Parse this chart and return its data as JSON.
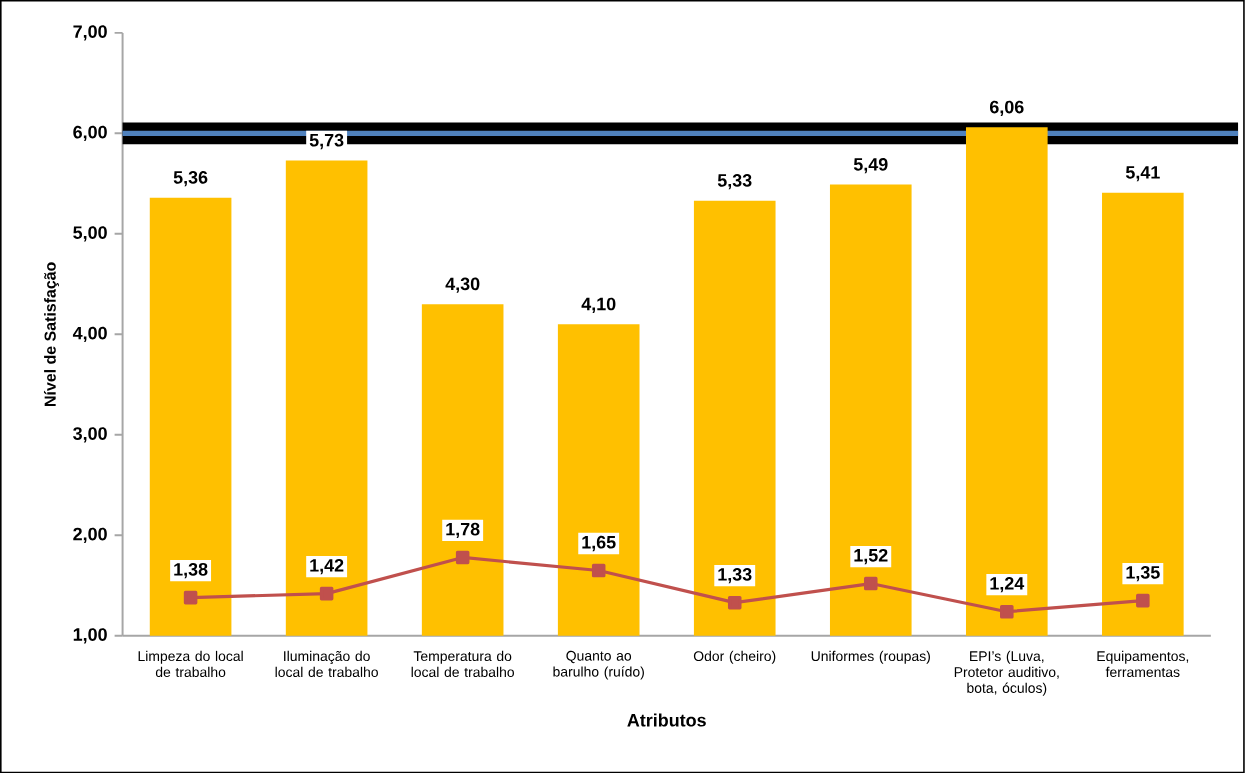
{
  "chart_data": {
    "type": "bar",
    "xlabel": "Atributos",
    "ylabel": "Nível de Satisfação",
    "categories": [
      "Limpeza do local de trabalho",
      "Iluminação do local de trabalho",
      "Temperatura do local de trabalho",
      "Quanto ao barulho (ruído)",
      "Odor (cheiro)",
      "Uniformes (roupas)",
      "EPI’s (Luva, Protetor auditivo, bota, óculos)",
      "Equipamentos, ferramentas"
    ],
    "series": [
      {
        "color": "#ffc000",
        "values": [
          5.36,
          5.73,
          4.3,
          4.1,
          5.33,
          5.49,
          6.06,
          5.41
        ],
        "value_labels": [
          "5,36",
          "5,73",
          "4,30",
          "4,10",
          "5,33",
          "5,49",
          "6,06",
          "5,41"
        ]
      },
      {
        "type": "line",
        "color": "#c0504d",
        "marker": "square",
        "values": [
          1.38,
          1.42,
          1.78,
          1.65,
          1.33,
          1.52,
          1.24,
          1.35
        ],
        "value_labels": [
          "1,38",
          "1,42",
          "1,78",
          "1,65",
          "1,33",
          "1,52",
          "1,24",
          "1,35"
        ]
      }
    ],
    "ylim": [
      1,
      7
    ],
    "yticks": [
      {
        "value": 1,
        "label": "1,00"
      },
      {
        "value": 2,
        "label": "2,00"
      },
      {
        "value": 3,
        "label": "3,00"
      },
      {
        "value": 4,
        "label": "4,00"
      },
      {
        "value": 5,
        "label": "5,00"
      },
      {
        "value": 6,
        "label": "6,00"
      },
      {
        "value": 7,
        "label": "7,00"
      }
    ],
    "ref_lines": [
      {
        "axis": "y",
        "value": 6,
        "color": "#000000"
      },
      {
        "axis": "y",
        "value": 6,
        "color": "#4f81bd"
      }
    ],
    "grid": false
  }
}
